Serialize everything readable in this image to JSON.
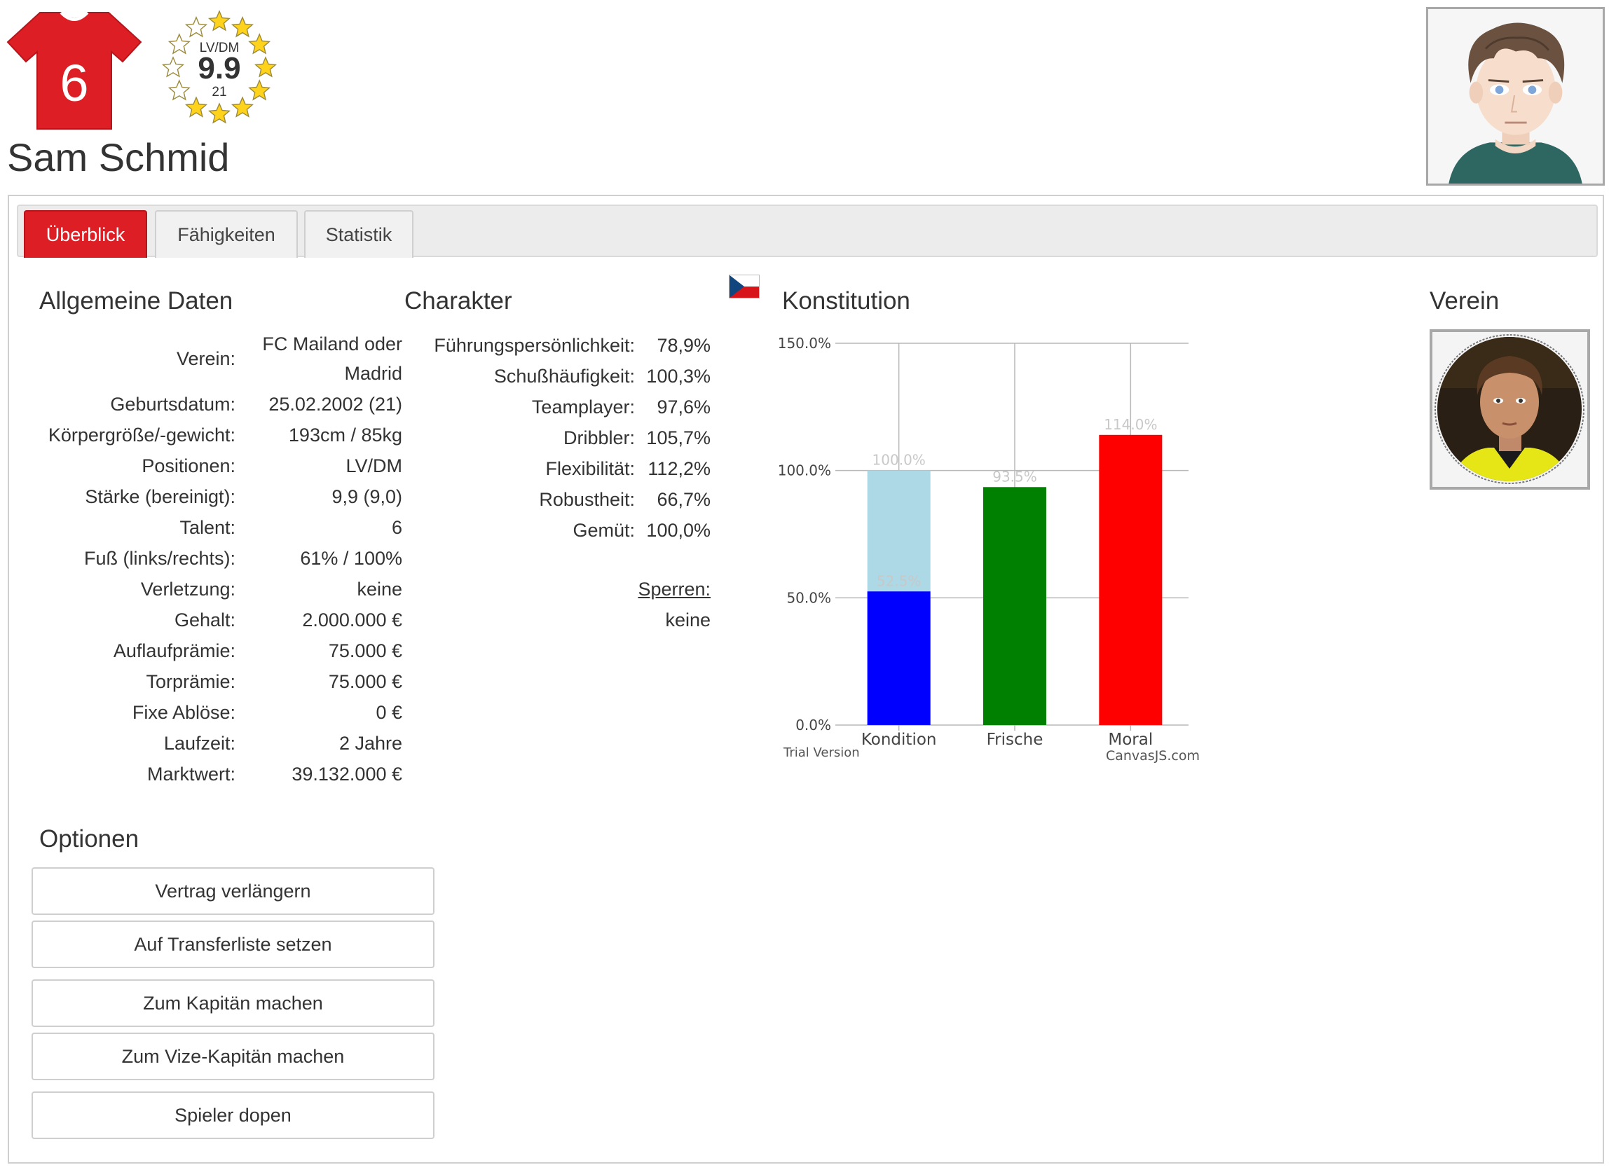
{
  "header": {
    "shirt_number": "6",
    "badge_position": "LV/DM",
    "badge_rating": "9.9",
    "badge_age": "21",
    "player_name": "Sam Schmid",
    "shirt_color": "#dd1e25"
  },
  "tabs": [
    {
      "label": "Überblick",
      "active": true
    },
    {
      "label": "Fähigkeiten",
      "active": false
    },
    {
      "label": "Statistik",
      "active": false
    }
  ],
  "general": {
    "title": "Allgemeine Daten",
    "rows": [
      {
        "label": "Verein:",
        "value": "FC Mailand oder",
        "value2": "Madrid"
      },
      {
        "label": "Geburtsdatum:",
        "value": "25.02.2002 (21)"
      },
      {
        "label": "Körpergröße/-gewicht:",
        "value": "193cm / 85kg"
      },
      {
        "label": "Positionen:",
        "value": "LV/DM"
      },
      {
        "label": "Stärke (bereinigt):",
        "value": "9,9 (9,0)"
      },
      {
        "label": "Talent:",
        "value": "6"
      },
      {
        "label": "Fuß (links/rechts):",
        "value": "61% / 100%"
      },
      {
        "label": "Verletzung:",
        "value": "keine"
      },
      {
        "label": "Gehalt:",
        "value": "2.000.000 €"
      },
      {
        "label": "Auflaufprämie:",
        "value": "75.000 €"
      },
      {
        "label": "Torprämie:",
        "value": "75.000 €"
      },
      {
        "label": "Fixe Ablöse:",
        "value": "0 €"
      },
      {
        "label": "Laufzeit:",
        "value": "2 Jahre"
      },
      {
        "label": "Marktwert:",
        "value": "39.132.000 €"
      }
    ]
  },
  "character": {
    "title": "Charakter",
    "rows": [
      {
        "label": "Führungspersönlichkeit:",
        "value": "78,9%"
      },
      {
        "label": "Schußhäufigkeit:",
        "value": "100,3%"
      },
      {
        "label": "Teamplayer:",
        "value": "97,6%"
      },
      {
        "label": "Dribbler:",
        "value": "105,7%"
      },
      {
        "label": "Flexibilität:",
        "value": "112,2%"
      },
      {
        "label": "Robustheit:",
        "value": "66,7%"
      },
      {
        "label": "Gemüt:",
        "value": "100,0%"
      }
    ],
    "sperren_label": "Sperren:",
    "sperren_value": "keine"
  },
  "options": {
    "title": "Optionen",
    "buttons": [
      "Vertrag verlängern",
      "Auf Transferliste setzen",
      "Zum Kapitän machen",
      "Zum Vize-Kapitän machen",
      "Spieler dopen"
    ]
  },
  "konstitution": {
    "title": "Konstitution",
    "flag_icon": "czech-flag-icon"
  },
  "verein": {
    "title": "Verein"
  },
  "chart_data": {
    "type": "bar",
    "categories": [
      "Kondition",
      "Frische",
      "Moral"
    ],
    "series": [
      {
        "values": [
          52.5,
          93.5,
          114.0
        ],
        "colors": [
          "#0000ff",
          "#008000",
          "#ff0000"
        ]
      },
      {
        "values": [
          100.0,
          null,
          null
        ],
        "colors": [
          "#add8e6",
          null,
          null
        ]
      }
    ],
    "data_labels": [
      "52.5%",
      "100.0%",
      "93.5%",
      "114.0%"
    ],
    "ylim": [
      0,
      150
    ],
    "yticks": [
      "0.0%",
      "50.0%",
      "100.0%",
      "150.0%"
    ],
    "ytick_values": [
      0,
      50,
      100,
      150
    ],
    "watermark_left": "Trial Version",
    "watermark_right": "CanvasJS.com",
    "grid": true
  }
}
